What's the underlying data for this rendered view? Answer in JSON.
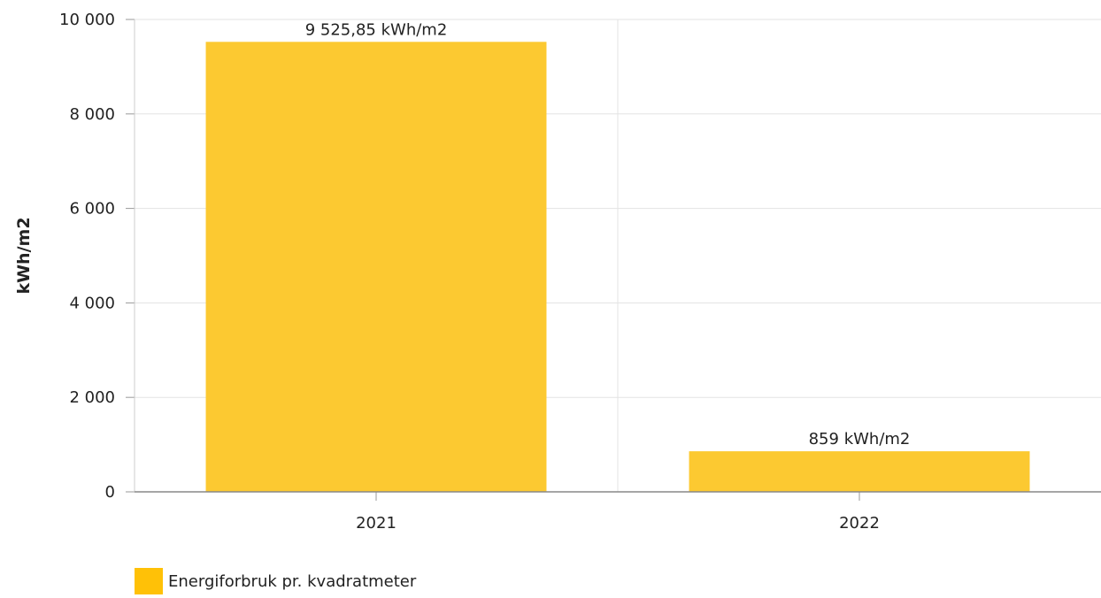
{
  "chart_data": {
    "type": "bar",
    "categories": [
      "2021",
      "2022"
    ],
    "series": [
      {
        "name": "Energiforbruk pr. kvadratmeter",
        "values": [
          9525.85,
          859
        ],
        "data_labels": [
          "9 525,85 kWh/m2",
          "859 kWh/m2"
        ],
        "color": "#fcc931"
      }
    ],
    "xlabel": "",
    "ylabel": "kWh/m2",
    "ylim": [
      0,
      10000
    ],
    "yticks": [
      0,
      2000,
      4000,
      6000,
      8000,
      10000
    ],
    "ytick_labels": [
      "0",
      "2 000",
      "4 000",
      "6 000",
      "8 000",
      "10 000"
    ],
    "grid": true,
    "legend_position": "bottom-left",
    "legend_swatch_color": "#ffc107"
  }
}
